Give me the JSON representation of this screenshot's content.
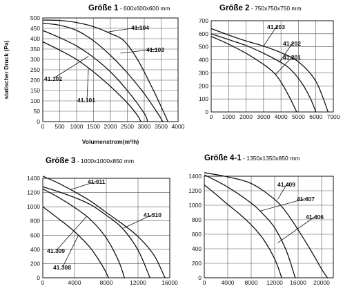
{
  "chart_data": [
    {
      "id": "g1",
      "type": "line",
      "title": "Größe 1",
      "subtitle": "600x600x600 mm",
      "xlabel": "Volumenstrom(m³/h)",
      "ylabel": "statischer Druck (Pa)",
      "xlim": [
        0,
        4000
      ],
      "ylim": [
        0,
        500
      ],
      "xticks": [
        0,
        500,
        1000,
        1500,
        2000,
        2500,
        3000,
        3500,
        4000
      ],
      "yticks": [
        0,
        50,
        100,
        150,
        200,
        250,
        300,
        350,
        400,
        450,
        500
      ],
      "grid": true,
      "series": [
        {
          "name": "41.101",
          "x": [
            0,
            500,
            1000,
            1500,
            2000,
            2500,
            2800,
            2900
          ],
          "y": [
            385,
            345,
            300,
            240,
            170,
            90,
            30,
            0
          ]
        },
        {
          "name": "41.102",
          "x": [
            0,
            500,
            1000,
            1500,
            2000,
            2500,
            3000,
            3100
          ],
          "y": [
            440,
            405,
            365,
            310,
            240,
            150,
            40,
            0
          ]
        },
        {
          "name": "41.103",
          "x": [
            0,
            500,
            1000,
            1500,
            2000,
            2500,
            3000,
            3400,
            3550
          ],
          "y": [
            475,
            465,
            440,
            390,
            320,
            235,
            135,
            40,
            0
          ]
        },
        {
          "name": "41.104",
          "x": [
            0,
            500,
            1000,
            1500,
            2000,
            2400,
            2800,
            3200,
            3550,
            3700
          ],
          "y": [
            490,
            488,
            478,
            458,
            425,
            390,
            300,
            175,
            55,
            0
          ]
        }
      ]
    },
    {
      "id": "g2",
      "type": "line",
      "title": "Größe 2",
      "subtitle": "750x750x750 mm",
      "xlim": [
        0,
        7000
      ],
      "ylim": [
        0,
        700
      ],
      "xticks": [
        0,
        1000,
        2000,
        3000,
        4000,
        5000,
        6000,
        7000
      ],
      "yticks": [
        0,
        100,
        200,
        300,
        400,
        500,
        600,
        700
      ],
      "grid": true,
      "series": [
        {
          "name": "41.201",
          "x": [
            0,
            1000,
            2000,
            3000,
            3600,
            4000,
            4500,
            4900
          ],
          "y": [
            580,
            520,
            450,
            365,
            300,
            230,
            110,
            0
          ]
        },
        {
          "name": "41.202",
          "x": [
            0,
            1000,
            2000,
            3000,
            4000,
            4600,
            5200,
            5700,
            6000
          ],
          "y": [
            600,
            555,
            510,
            450,
            380,
            320,
            220,
            100,
            0
          ]
        },
        {
          "name": "41.203",
          "x": [
            0,
            1000,
            2000,
            3000,
            4000,
            5000,
            6000,
            6700
          ],
          "y": [
            640,
            590,
            545,
            505,
            455,
            385,
            235,
            0
          ]
        }
      ]
    },
    {
      "id": "g3",
      "type": "line",
      "title": "Größe 3",
      "subtitle": "1000x1000x850 mm",
      "xlim": [
        0,
        16000
      ],
      "ylim": [
        0,
        1400
      ],
      "xticks": [
        0,
        4000,
        8000,
        12000,
        16000
      ],
      "yticks": [
        0,
        200,
        400,
        600,
        800,
        1000,
        1200,
        1400
      ],
      "grid": true,
      "series": [
        {
          "name": "41.308",
          "x": [
            0,
            2000,
            4000,
            6000,
            7500,
            8300
          ],
          "y": [
            1000,
            830,
            650,
            420,
            170,
            0
          ]
        },
        {
          "name": "41.309",
          "x": [
            0,
            2000,
            4000,
            6000,
            8000,
            9500,
            10300
          ],
          "y": [
            1250,
            1130,
            990,
            820,
            560,
            250,
            0
          ]
        },
        {
          "name": "41.310",
          "x": [
            0,
            2000,
            4000,
            6000,
            8000,
            10000,
            12000,
            13500
          ],
          "y": [
            1280,
            1210,
            1130,
            1030,
            880,
            700,
            390,
            0
          ]
        },
        {
          "name": "41.311",
          "x": [
            0,
            2000,
            4000,
            6000,
            8000,
            10000,
            12000,
            14000,
            15400
          ],
          "y": [
            1430,
            1330,
            1210,
            1080,
            920,
            760,
            580,
            320,
            0
          ]
        }
      ]
    },
    {
      "id": "g4",
      "type": "line",
      "title": "Größe 4-1",
      "subtitle": "1350x1350x850 mm",
      "xlim": [
        0,
        22000
      ],
      "ylim": [
        0,
        1400
      ],
      "xticks": [
        0,
        4000,
        8000,
        12000,
        16000,
        20000
      ],
      "yticks": [
        0,
        200,
        400,
        600,
        800,
        1000,
        1200,
        1400
      ],
      "grid": true,
      "series": [
        {
          "name": "41.406",
          "x": [
            0,
            2000,
            4000,
            6000,
            8000,
            10000,
            12000,
            13200
          ],
          "y": [
            1280,
            1150,
            1010,
            880,
            730,
            540,
            260,
            0
          ]
        },
        {
          "name": "41.407",
          "x": [
            0,
            4000,
            8000,
            10000,
            12000,
            14000,
            15500
          ],
          "y": [
            1420,
            1250,
            1030,
            880,
            690,
            370,
            0
          ]
        },
        {
          "name": "41.409",
          "x": [
            0,
            4000,
            8000,
            12000,
            14000,
            16000,
            18000,
            20000,
            21000
          ],
          "y": [
            1450,
            1390,
            1300,
            1080,
            900,
            660,
            400,
            120,
            0
          ]
        }
      ]
    }
  ]
}
